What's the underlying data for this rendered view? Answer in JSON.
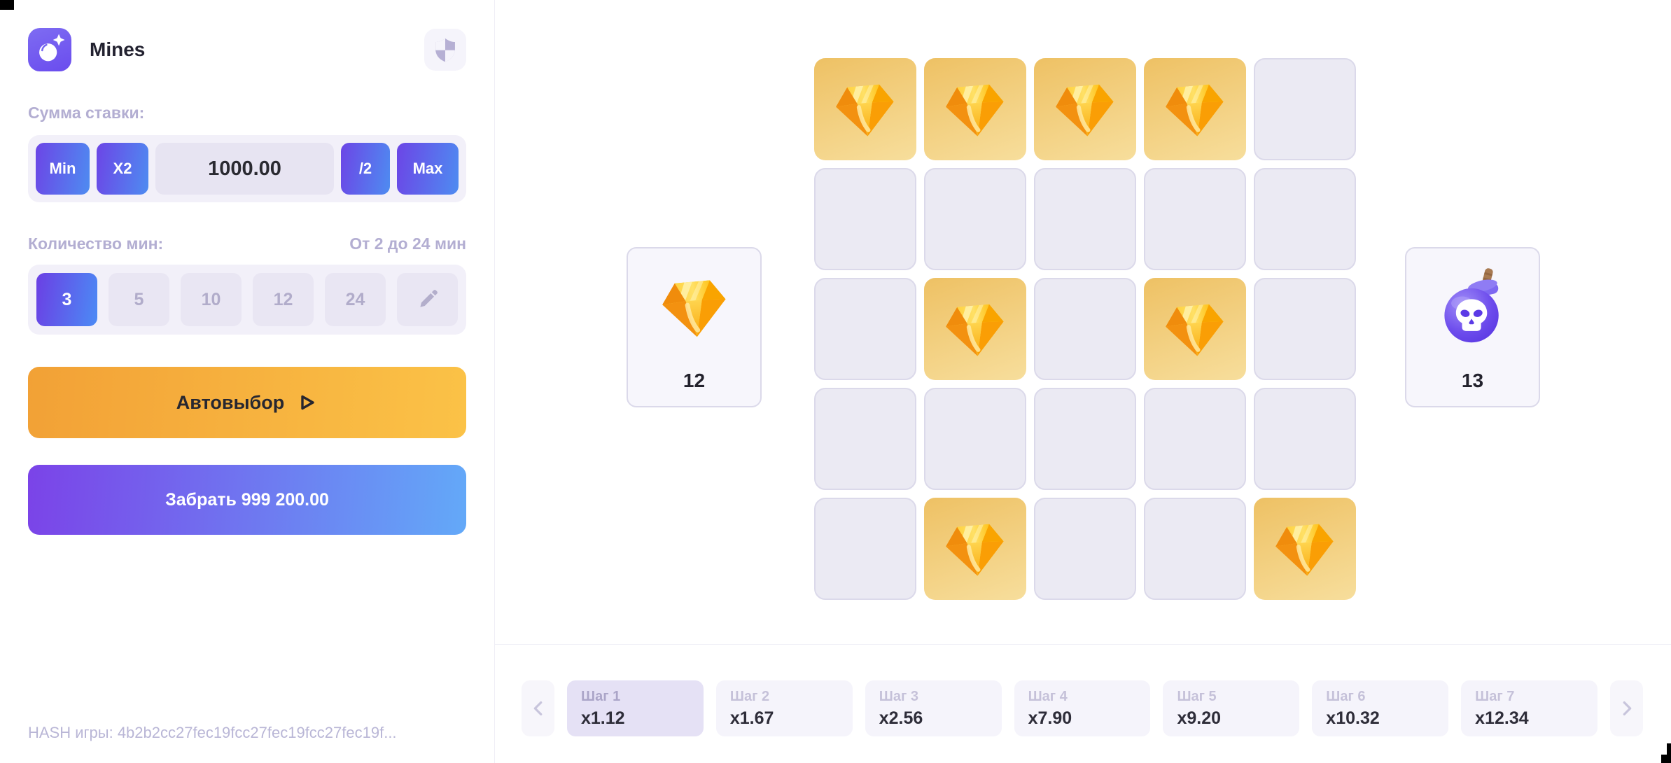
{
  "sidebar": {
    "title": "Mines",
    "bet": {
      "label": "Сумма ставки:",
      "min_label": "Min",
      "x2_label": "X2",
      "amount": "1000.00",
      "half_label": "/2",
      "max_label": "Max"
    },
    "mines": {
      "label": "Количество мин:",
      "range_hint": "От 2 до 24 мин",
      "options": [
        "3",
        "5",
        "10",
        "12",
        "24"
      ],
      "selected": "3"
    },
    "autopick_label": "Автовыбор",
    "cashout_label": "Забрать 999 200.00",
    "hash_label": "HASH игры: 4b2b2cc27fec19fcc27fec19fcc27fec19f..."
  },
  "board": {
    "left_counter": {
      "icon": "diamond-icon",
      "value": "12"
    },
    "right_counter": {
      "icon": "bomb-icon",
      "value": "13"
    },
    "grid": {
      "rows": 5,
      "cols": 5,
      "revealed_diamonds": [
        [
          0,
          0
        ],
        [
          0,
          1
        ],
        [
          0,
          2
        ],
        [
          0,
          3
        ],
        [
          2,
          1
        ],
        [
          2,
          3
        ],
        [
          4,
          1
        ],
        [
          4,
          4
        ]
      ]
    }
  },
  "steps": {
    "items": [
      {
        "label": "Шаг 1",
        "multiplier": "x1.12",
        "active": true
      },
      {
        "label": "Шаг 2",
        "multiplier": "x1.67",
        "active": false
      },
      {
        "label": "Шаг 3",
        "multiplier": "x2.56",
        "active": false
      },
      {
        "label": "Шаг 4",
        "multiplier": "x7.90",
        "active": false
      },
      {
        "label": "Шаг 5",
        "multiplier": "x9.20",
        "active": false
      },
      {
        "label": "Шаг 6",
        "multiplier": "x10.32",
        "active": false
      },
      {
        "label": "Шаг 7",
        "multiplier": "x12.34",
        "active": false
      }
    ]
  },
  "colors": {
    "accent_purple": "#6C45E6",
    "accent_blue": "#4E8CF1",
    "autopick_orange_start": "#F2A136",
    "autopick_orange_end": "#FBC247",
    "cashout_start": "#7B43E8",
    "cashout_end": "#63A9F8",
    "tile_empty": "#EBEAF3",
    "tile_revealed_start": "#EEC164",
    "tile_revealed_end": "#F7DE9C",
    "muted_label": "#B3AED2",
    "dark_text": "#232230"
  }
}
